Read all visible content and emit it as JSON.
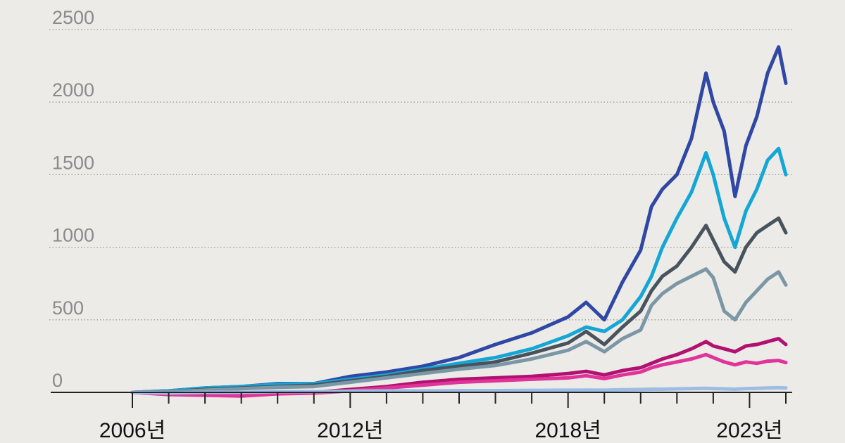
{
  "chart_data": {
    "type": "line",
    "title": "",
    "xlabel": "",
    "ylabel": "",
    "xlim": [
      2006.0,
      2024.0
    ],
    "ylim": [
      0,
      2500
    ],
    "grid": true,
    "yticks": [
      {
        "value": 0,
        "label": "0"
      },
      {
        "value": 500,
        "label": "500"
      },
      {
        "value": 1000,
        "label": "1000"
      },
      {
        "value": 1500,
        "label": "1500"
      },
      {
        "value": 2000,
        "label": "2000"
      },
      {
        "value": 2500,
        "label": "2500"
      }
    ],
    "xticks": [
      {
        "value": 2006,
        "label": "2006년"
      },
      {
        "value": 2012,
        "label": "2012년"
      },
      {
        "value": 2018,
        "label": "2018년"
      },
      {
        "value": 2023,
        "label": "2023년"
      }
    ],
    "minor_xticks": [
      2007,
      2008,
      2009,
      2010,
      2011,
      2013,
      2014,
      2015,
      2016,
      2017,
      2019,
      2020,
      2021,
      2022,
      2024
    ],
    "x": [
      2006.0,
      2007.0,
      2008.0,
      2009.0,
      2010.0,
      2011.0,
      2012.0,
      2013.0,
      2014.0,
      2015.0,
      2016.0,
      2017.0,
      2018.0,
      2018.5,
      2019.0,
      2019.5,
      2020.0,
      2020.3,
      2020.6,
      2021.0,
      2021.4,
      2021.8,
      2022.0,
      2022.3,
      2022.6,
      2022.9,
      2023.2,
      2023.5,
      2023.8,
      2024.0
    ],
    "series": [
      {
        "color": "#2f47a5",
        "values": [
          0,
          10,
          30,
          40,
          60,
          60,
          110,
          140,
          180,
          240,
          330,
          410,
          520,
          620,
          500,
          760,
          980,
          1280,
          1400,
          1500,
          1750,
          2200,
          2000,
          1800,
          1350,
          1700,
          1900,
          2200,
          2380,
          2130
        ]
      },
      {
        "color": "#13a6d6",
        "values": [
          0,
          10,
          30,
          40,
          55,
          60,
          90,
          120,
          160,
          200,
          240,
          300,
          390,
          450,
          420,
          500,
          660,
          800,
          1000,
          1200,
          1380,
          1650,
          1500,
          1200,
          1000,
          1250,
          1400,
          1600,
          1680,
          1500
        ]
      },
      {
        "color": "#48545d",
        "values": [
          0,
          5,
          20,
          30,
          40,
          50,
          80,
          110,
          150,
          180,
          210,
          270,
          340,
          420,
          330,
          450,
          560,
          700,
          800,
          870,
          1000,
          1150,
          1050,
          900,
          830,
          1000,
          1100,
          1150,
          1200,
          1100
        ]
      },
      {
        "color": "#7b97a5",
        "values": [
          0,
          5,
          15,
          25,
          35,
          40,
          70,
          100,
          130,
          160,
          185,
          230,
          290,
          350,
          280,
          370,
          430,
          600,
          680,
          750,
          800,
          850,
          790,
          560,
          500,
          620,
          700,
          780,
          830,
          740
        ]
      },
      {
        "color": "#b1116f",
        "values": [
          0,
          -10,
          -10,
          -15,
          -5,
          0,
          20,
          40,
          70,
          90,
          100,
          110,
          130,
          145,
          120,
          150,
          170,
          200,
          230,
          260,
          300,
          350,
          320,
          300,
          280,
          320,
          330,
          350,
          370,
          330
        ]
      },
      {
        "color": "#e0349a",
        "values": [
          0,
          -15,
          -20,
          -25,
          -10,
          -5,
          10,
          30,
          50,
          70,
          80,
          90,
          100,
          115,
          95,
          120,
          140,
          170,
          190,
          210,
          230,
          260,
          240,
          210,
          190,
          210,
          200,
          215,
          220,
          205
        ]
      },
      {
        "color": "#9dbde6",
        "values": [
          0,
          -5,
          0,
          0,
          5,
          5,
          8,
          10,
          10,
          12,
          12,
          14,
          15,
          16,
          15,
          18,
          20,
          22,
          22,
          24,
          26,
          28,
          26,
          24,
          22,
          26,
          28,
          30,
          32,
          30
        ]
      }
    ]
  }
}
